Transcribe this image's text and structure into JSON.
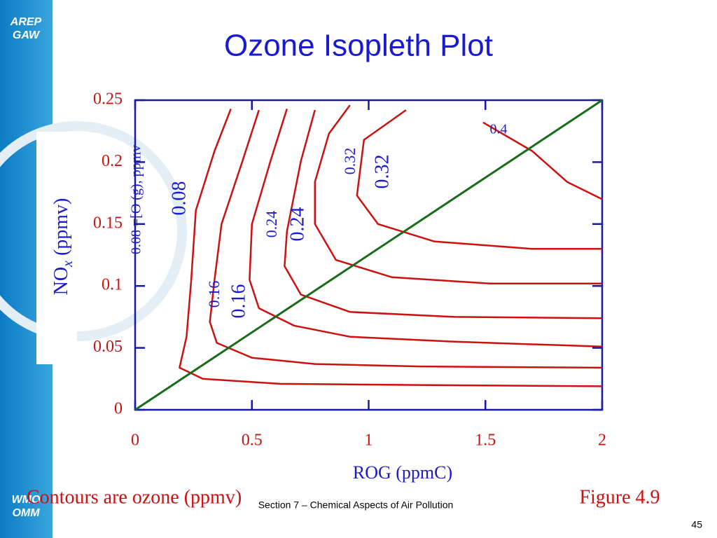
{
  "slide": {
    "logo_top": [
      "AREP",
      "GAW"
    ],
    "logo_bottom": [
      "WMO",
      "OMM"
    ],
    "title": "Ozone Isopleth Plot",
    "caption": "Contours are ozone (ppmv)",
    "figure_label": "Figure 4.9",
    "footer": "Section 7 – Chemical Aspects of Air Pollution",
    "page_number": "45"
  },
  "chart_data": {
    "type": "contour",
    "x_label": "ROG (ppmC)",
    "y_label": {
      "main": "NO",
      "sub": "x",
      "rest": " (ppmv)"
    },
    "xlim": [
      0,
      2
    ],
    "ylim": [
      0,
      0.25
    ],
    "xticks": [
      0,
      0.5,
      1,
      1.5,
      2
    ],
    "yticks": [
      0,
      0.05,
      0.1,
      0.15,
      0.2,
      0.25
    ],
    "contour_color": "#cc1111",
    "series": [
      {
        "x": [
          0.41,
          0.34,
          0.26,
          0.24,
          0.22,
          0.19,
          0.29,
          0.62,
          1.22,
          2.0
        ],
        "y": [
          0.243,
          0.209,
          0.161,
          0.104,
          0.059,
          0.034,
          0.025,
          0.021,
          0.02,
          0.019
        ]
      },
      {
        "x": [
          0.53,
          0.46,
          0.37,
          0.34,
          0.32,
          0.35,
          0.5,
          0.77,
          1.22,
          2.0
        ],
        "y": [
          0.242,
          0.201,
          0.15,
          0.105,
          0.071,
          0.054,
          0.042,
          0.037,
          0.035,
          0.034
        ]
      },
      {
        "x": [
          0.65,
          0.58,
          0.5,
          0.49,
          0.53,
          0.68,
          0.92,
          1.37,
          2.0
        ],
        "y": [
          0.243,
          0.201,
          0.15,
          0.105,
          0.082,
          0.068,
          0.059,
          0.055,
          0.051
        ]
      },
      {
        "x": [
          0.77,
          0.71,
          0.65,
          0.64,
          0.71,
          0.92,
          1.37,
          2.0
        ],
        "y": [
          0.242,
          0.201,
          0.144,
          0.116,
          0.093,
          0.079,
          0.075,
          0.074
        ]
      },
      {
        "x": [
          0.92,
          0.83,
          0.77,
          0.77,
          0.86,
          1.1,
          1.52,
          2.0
        ],
        "y": [
          0.246,
          0.223,
          0.184,
          0.15,
          0.121,
          0.107,
          0.102,
          0.102
        ]
      },
      {
        "x": [
          1.16,
          0.98,
          0.95,
          1.04,
          1.28,
          1.7,
          2.0
        ],
        "y": [
          0.242,
          0.218,
          0.173,
          0.15,
          0.136,
          0.13,
          0.13
        ]
      },
      {
        "x": [
          1.49,
          1.7,
          1.85,
          2.0
        ],
        "y": [
          0.232,
          0.209,
          0.184,
          0.17
        ]
      }
    ],
    "reference_line": {
      "x": [
        0,
        2
      ],
      "y": [
        0,
        0.25
      ],
      "color": "#1a6b1a"
    },
    "annotations": [
      "0.08",
      "0.08 =[O (g), ppmv",
      "0.16",
      "0.16",
      "0.24",
      "0.24",
      "0.32",
      "0.32",
      "0.4"
    ]
  }
}
